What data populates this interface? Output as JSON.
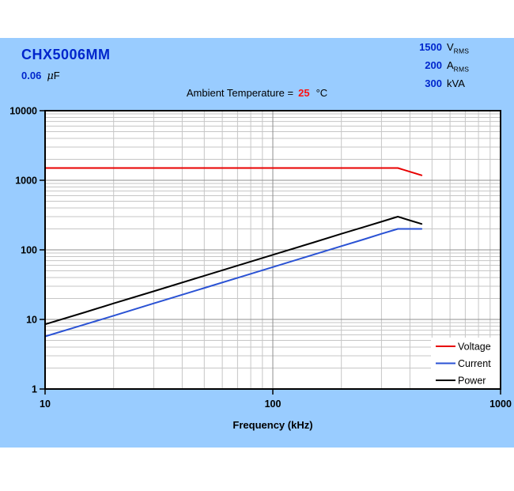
{
  "header": {
    "title": "CHX5006MM",
    "cap_value": "0.06",
    "cap_unit_mu": "μ",
    "cap_unit_rest": "F",
    "ambient_label": "Ambient Temperature =",
    "ambient_value": "25",
    "ambient_unit": "°C"
  },
  "ratings": [
    {
      "value": "1500",
      "unit_main": "V",
      "unit_sub": "RMS"
    },
    {
      "value": "200",
      "unit_main": "A",
      "unit_sub": "RMS"
    },
    {
      "value": "300",
      "unit_main": "kVA",
      "unit_sub": ""
    }
  ],
  "colors": {
    "panel_blue": "#99CCFF",
    "accent_blue": "#0026CC",
    "temp_red": "#FF1111",
    "voltage_red": "#E80000",
    "current_blue": "#2A52D4",
    "power_black": "#000000",
    "grid_minor": "#C6C6C6",
    "grid_major": "#8F8F8F",
    "plot_bg": "#FFFFFF"
  },
  "chart_data": {
    "type": "line",
    "title": "",
    "xlabel": "Frequency (kHz)",
    "ylabel": "",
    "x_axis": {
      "scale": "log",
      "min": 10,
      "max": 1000,
      "ticks": [
        10,
        100,
        1000
      ],
      "tick_labels": [
        "10",
        "100",
        "1000"
      ]
    },
    "y_axis": {
      "scale": "log",
      "min": 1,
      "max": 10000,
      "ticks": [
        1,
        10,
        100,
        1000,
        10000
      ],
      "tick_labels": [
        "1",
        "10",
        "100",
        "1000",
        "10000"
      ]
    },
    "grid": "on",
    "legend_position": "bottom-right",
    "x": [
      10,
      15,
      20,
      30,
      50,
      70,
      100,
      150,
      200,
      250,
      300,
      354,
      400,
      450
    ],
    "series": [
      {
        "name": "Voltage",
        "color": "#E80000",
        "values": [
          1500,
          1500,
          1500,
          1500,
          1500,
          1500,
          1500,
          1500,
          1500,
          1500,
          1500,
          1500,
          1326,
          1179
        ]
      },
      {
        "name": "Current",
        "color": "#2A52D4",
        "values": [
          5.7,
          8.5,
          11.3,
          17.0,
          28.3,
          39.6,
          56.5,
          84.8,
          113,
          141,
          170,
          200,
          200,
          200
        ]
      },
      {
        "name": "Power",
        "color": "#000000",
        "values": [
          8.5,
          12.7,
          17.0,
          25.4,
          42.4,
          59.4,
          84.8,
          127,
          170,
          212,
          254,
          300,
          265,
          236
        ]
      }
    ]
  }
}
